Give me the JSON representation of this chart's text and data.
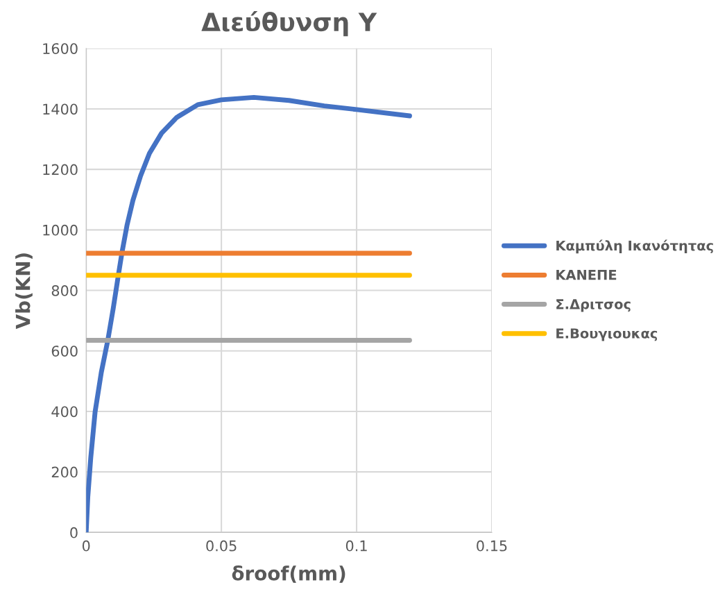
{
  "chart_data": {
    "type": "line",
    "title": "Διεύθυνση Υ",
    "xlabel": "δroof(mm)",
    "ylabel": "Vb(KN)",
    "xlim": [
      0,
      0.15
    ],
    "xticks": [
      0,
      0.05,
      0.1,
      0.15
    ],
    "ylim": [
      0,
      1600
    ],
    "yticks": [
      0,
      200,
      400,
      600,
      800,
      1000,
      1200,
      1400,
      1600
    ],
    "grid": true,
    "legend": "right",
    "marker": "none",
    "line_style": "solid",
    "series": [
      {
        "name": "Καμπύλη Ικανότητας",
        "color": "#4472c4",
        "x": [
          0,
          0.0006,
          0.0017,
          0.0033,
          0.0056,
          0.008,
          0.01,
          0.0119,
          0.0132,
          0.0151,
          0.0173,
          0.0201,
          0.0234,
          0.0279,
          0.0335,
          0.0413,
          0.05,
          0.062,
          0.075,
          0.088,
          0.1,
          0.1196
        ],
        "values": [
          0,
          116,
          247,
          398,
          529,
          635,
          740,
          850,
          923,
          1015,
          1098,
          1178,
          1253,
          1320,
          1372,
          1414,
          1430,
          1438,
          1428,
          1410,
          1398,
          1377
        ]
      },
      {
        "name": "ΚΑΝΕΠΕ",
        "color": "#ed7d31",
        "x": [
          0,
          0.1196
        ],
        "values": [
          923,
          923
        ]
      },
      {
        "name": "Σ.Δριτσος",
        "color": "#a5a5a5",
        "x": [
          0,
          0.1196
        ],
        "values": [
          635,
          635
        ]
      },
      {
        "name": "Ε.Βουγιουκας",
        "color": "#ffc000",
        "x": [
          0,
          0.1196
        ],
        "values": [
          850,
          850
        ]
      }
    ]
  }
}
